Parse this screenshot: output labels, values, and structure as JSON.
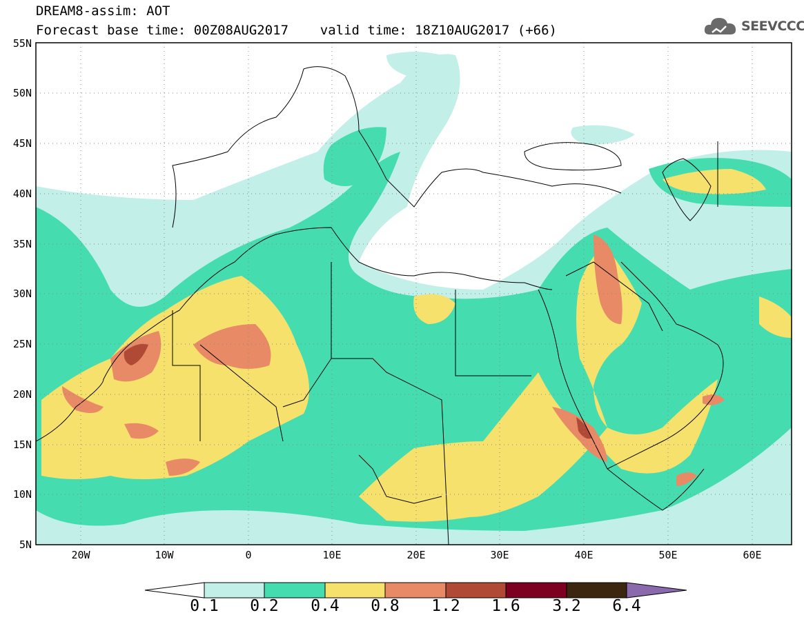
{
  "header": {
    "line1": "DREAM8-assim: AOT",
    "line2": "Forecast base time: 00Z08AUG2017    valid time: 18Z10AUG2017 (+66)"
  },
  "logo": {
    "text": "SEEVCCC",
    "icon": "cloud-logo-icon"
  },
  "map": {
    "lat_range": [
      5,
      55
    ],
    "lon_range": [
      -25,
      65
    ],
    "lat_labels": [
      "55N",
      "50N",
      "45N",
      "40N",
      "35N",
      "30N",
      "25N",
      "20N",
      "15N",
      "10N",
      "5N"
    ],
    "lon_labels": [
      "20W",
      "10W",
      "0",
      "10E",
      "20E",
      "30E",
      "40E",
      "50E",
      "60E"
    ]
  },
  "colorbar": {
    "ticks": [
      "0.1",
      "0.2",
      "0.4",
      "0.8",
      "1.2",
      "1.6",
      "3.2",
      "6.4"
    ],
    "colors": [
      "#ffffff",
      "#c2efe8",
      "#45ddb0",
      "#f6e16c",
      "#e88a66",
      "#b04936",
      "#7d0021",
      "#3c2610",
      "#8a6aad"
    ]
  }
}
